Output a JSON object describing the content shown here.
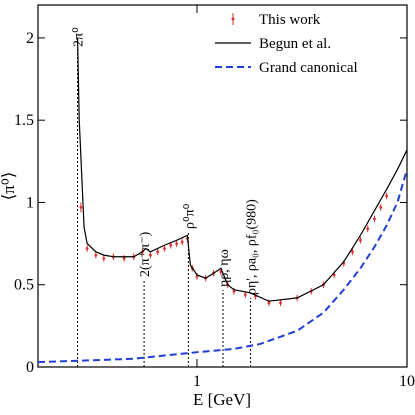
{
  "chart_data": {
    "type": "line",
    "xscale": "log",
    "xlabel": "E [GeV]",
    "ylabel": "⟨π⁰⟩",
    "xlim": [
      0.175,
      10
    ],
    "ylim": [
      0,
      2.2
    ],
    "xticks": [
      1,
      10
    ],
    "yticks": [
      0,
      0.5,
      1,
      1.5,
      2
    ],
    "legend": "upper right",
    "series": [
      {
        "name": "This work",
        "color": "#e03030",
        "style": "points",
        "x": [
          0.28,
          0.3,
          0.33,
          0.36,
          0.4,
          0.45,
          0.5,
          0.55,
          0.6,
          0.65,
          0.7,
          0.75,
          0.8,
          0.85,
          0.9,
          0.95,
          1.0,
          1.1,
          1.2,
          1.3,
          1.4,
          1.5,
          1.7,
          1.9,
          2.2,
          2.5,
          3.0,
          3.5,
          4.0,
          4.5,
          5.0,
          5.5,
          6.0,
          6.5,
          7.0,
          7.5,
          8.0
        ],
        "values": [
          0.97,
          0.72,
          0.68,
          0.66,
          0.67,
          0.66,
          0.67,
          0.7,
          0.68,
          0.7,
          0.72,
          0.74,
          0.75,
          0.76,
          0.78,
          0.6,
          0.55,
          0.54,
          0.57,
          0.58,
          0.5,
          0.46,
          0.44,
          0.43,
          0.39,
          0.39,
          0.42,
          0.46,
          0.5,
          0.56,
          0.63,
          0.7,
          0.77,
          0.84,
          0.9,
          0.97,
          1.04
        ],
        "errors": [
          0.03,
          0.02,
          0.02,
          0.02,
          0.02,
          0.02,
          0.02,
          0.02,
          0.02,
          0.02,
          0.02,
          0.02,
          0.02,
          0.02,
          0.02,
          0.02,
          0.02,
          0.02,
          0.02,
          0.02,
          0.02,
          0.02,
          0.02,
          0.02,
          0.02,
          0.02,
          0.02,
          0.02,
          0.02,
          0.02,
          0.02,
          0.02,
          0.02,
          0.02,
          0.02,
          0.02,
          0.02
        ]
      },
      {
        "name": "Begun et al.",
        "color": "#000000",
        "style": "solid",
        "x": [
          0.27,
          0.275,
          0.29,
          0.3,
          0.33,
          0.36,
          0.4,
          0.5,
          0.55,
          0.57,
          0.6,
          0.7,
          0.8,
          0.9,
          0.93,
          1.0,
          1.1,
          1.2,
          1.3,
          1.4,
          1.5,
          1.8,
          2.2,
          3.0,
          4.0,
          5.0,
          6.0,
          7.0,
          8.0,
          9.0,
          10.0
        ],
        "values": [
          2.0,
          1.5,
          0.85,
          0.75,
          0.7,
          0.68,
          0.67,
          0.67,
          0.7,
          0.72,
          0.7,
          0.74,
          0.77,
          0.8,
          0.62,
          0.56,
          0.54,
          0.57,
          0.6,
          0.5,
          0.47,
          0.45,
          0.4,
          0.42,
          0.5,
          0.64,
          0.8,
          0.95,
          1.08,
          1.2,
          1.32
        ]
      },
      {
        "name": "Grand canonical",
        "color": "#1f3fd8",
        "style": "dashed",
        "x": [
          0.175,
          0.3,
          0.5,
          0.7,
          1.0,
          1.5,
          2.0,
          3.0,
          4.0,
          5.0,
          6.0,
          7.0,
          8.0,
          9.0,
          10.0
        ],
        "values": [
          0.03,
          0.04,
          0.05,
          0.07,
          0.09,
          0.11,
          0.14,
          0.22,
          0.33,
          0.47,
          0.6,
          0.73,
          0.86,
          1.0,
          1.2
        ]
      }
    ],
    "annotations": [
      {
        "x": 0.27,
        "text": "2π⁰"
      },
      {
        "x": 0.56,
        "text": "2(π⁺π⁻)"
      },
      {
        "x": 0.91,
        "text": "ρ⁰π⁰"
      },
      {
        "x": 1.33,
        "text": "ηρ, ηω"
      },
      {
        "x": 1.8,
        "text": "ρη', ρa₀, ρf₀(980)"
      }
    ]
  }
}
